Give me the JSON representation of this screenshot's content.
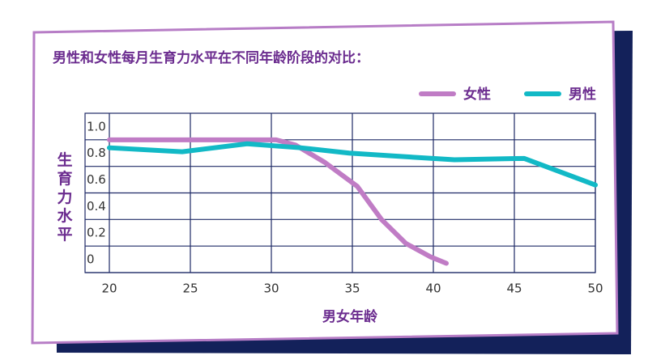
{
  "chart_data": {
    "type": "line",
    "title": "男性和女性每月生育力水平在不同年龄阶段的对比：",
    "xlabel": "男女年龄",
    "ylabel": "生育力水平",
    "xlim": [
      18.5,
      50
    ],
    "xticks": [
      20,
      25,
      30,
      35,
      40,
      45,
      50
    ],
    "ylim": [
      0,
      1.2
    ],
    "yticks": [
      0,
      0.2,
      0.4,
      0.6,
      0.8,
      {
        "value": 1.0,
        "label": "1.0"
      }
    ],
    "grid": true,
    "legend": "top-right",
    "series": [
      {
        "name": "女性",
        "color": "#c07cc5",
        "x": [
          20,
          30.3,
          31.5,
          33.3,
          35.3,
          36.8,
          38.3,
          39.8,
          40.8
        ],
        "values": [
          1.0,
          1.0,
          0.96,
          0.83,
          0.65,
          0.4,
          0.22,
          0.12,
          0.07
        ]
      },
      {
        "name": "男性",
        "color": "#12b9c6",
        "x": [
          20,
          24.5,
          28.5,
          31.8,
          34.8,
          37.3,
          41.3,
          45.6,
          50
        ],
        "values": [
          0.94,
          0.91,
          0.97,
          0.94,
          0.9,
          0.88,
          0.85,
          0.86,
          0.66
        ]
      }
    ]
  }
}
